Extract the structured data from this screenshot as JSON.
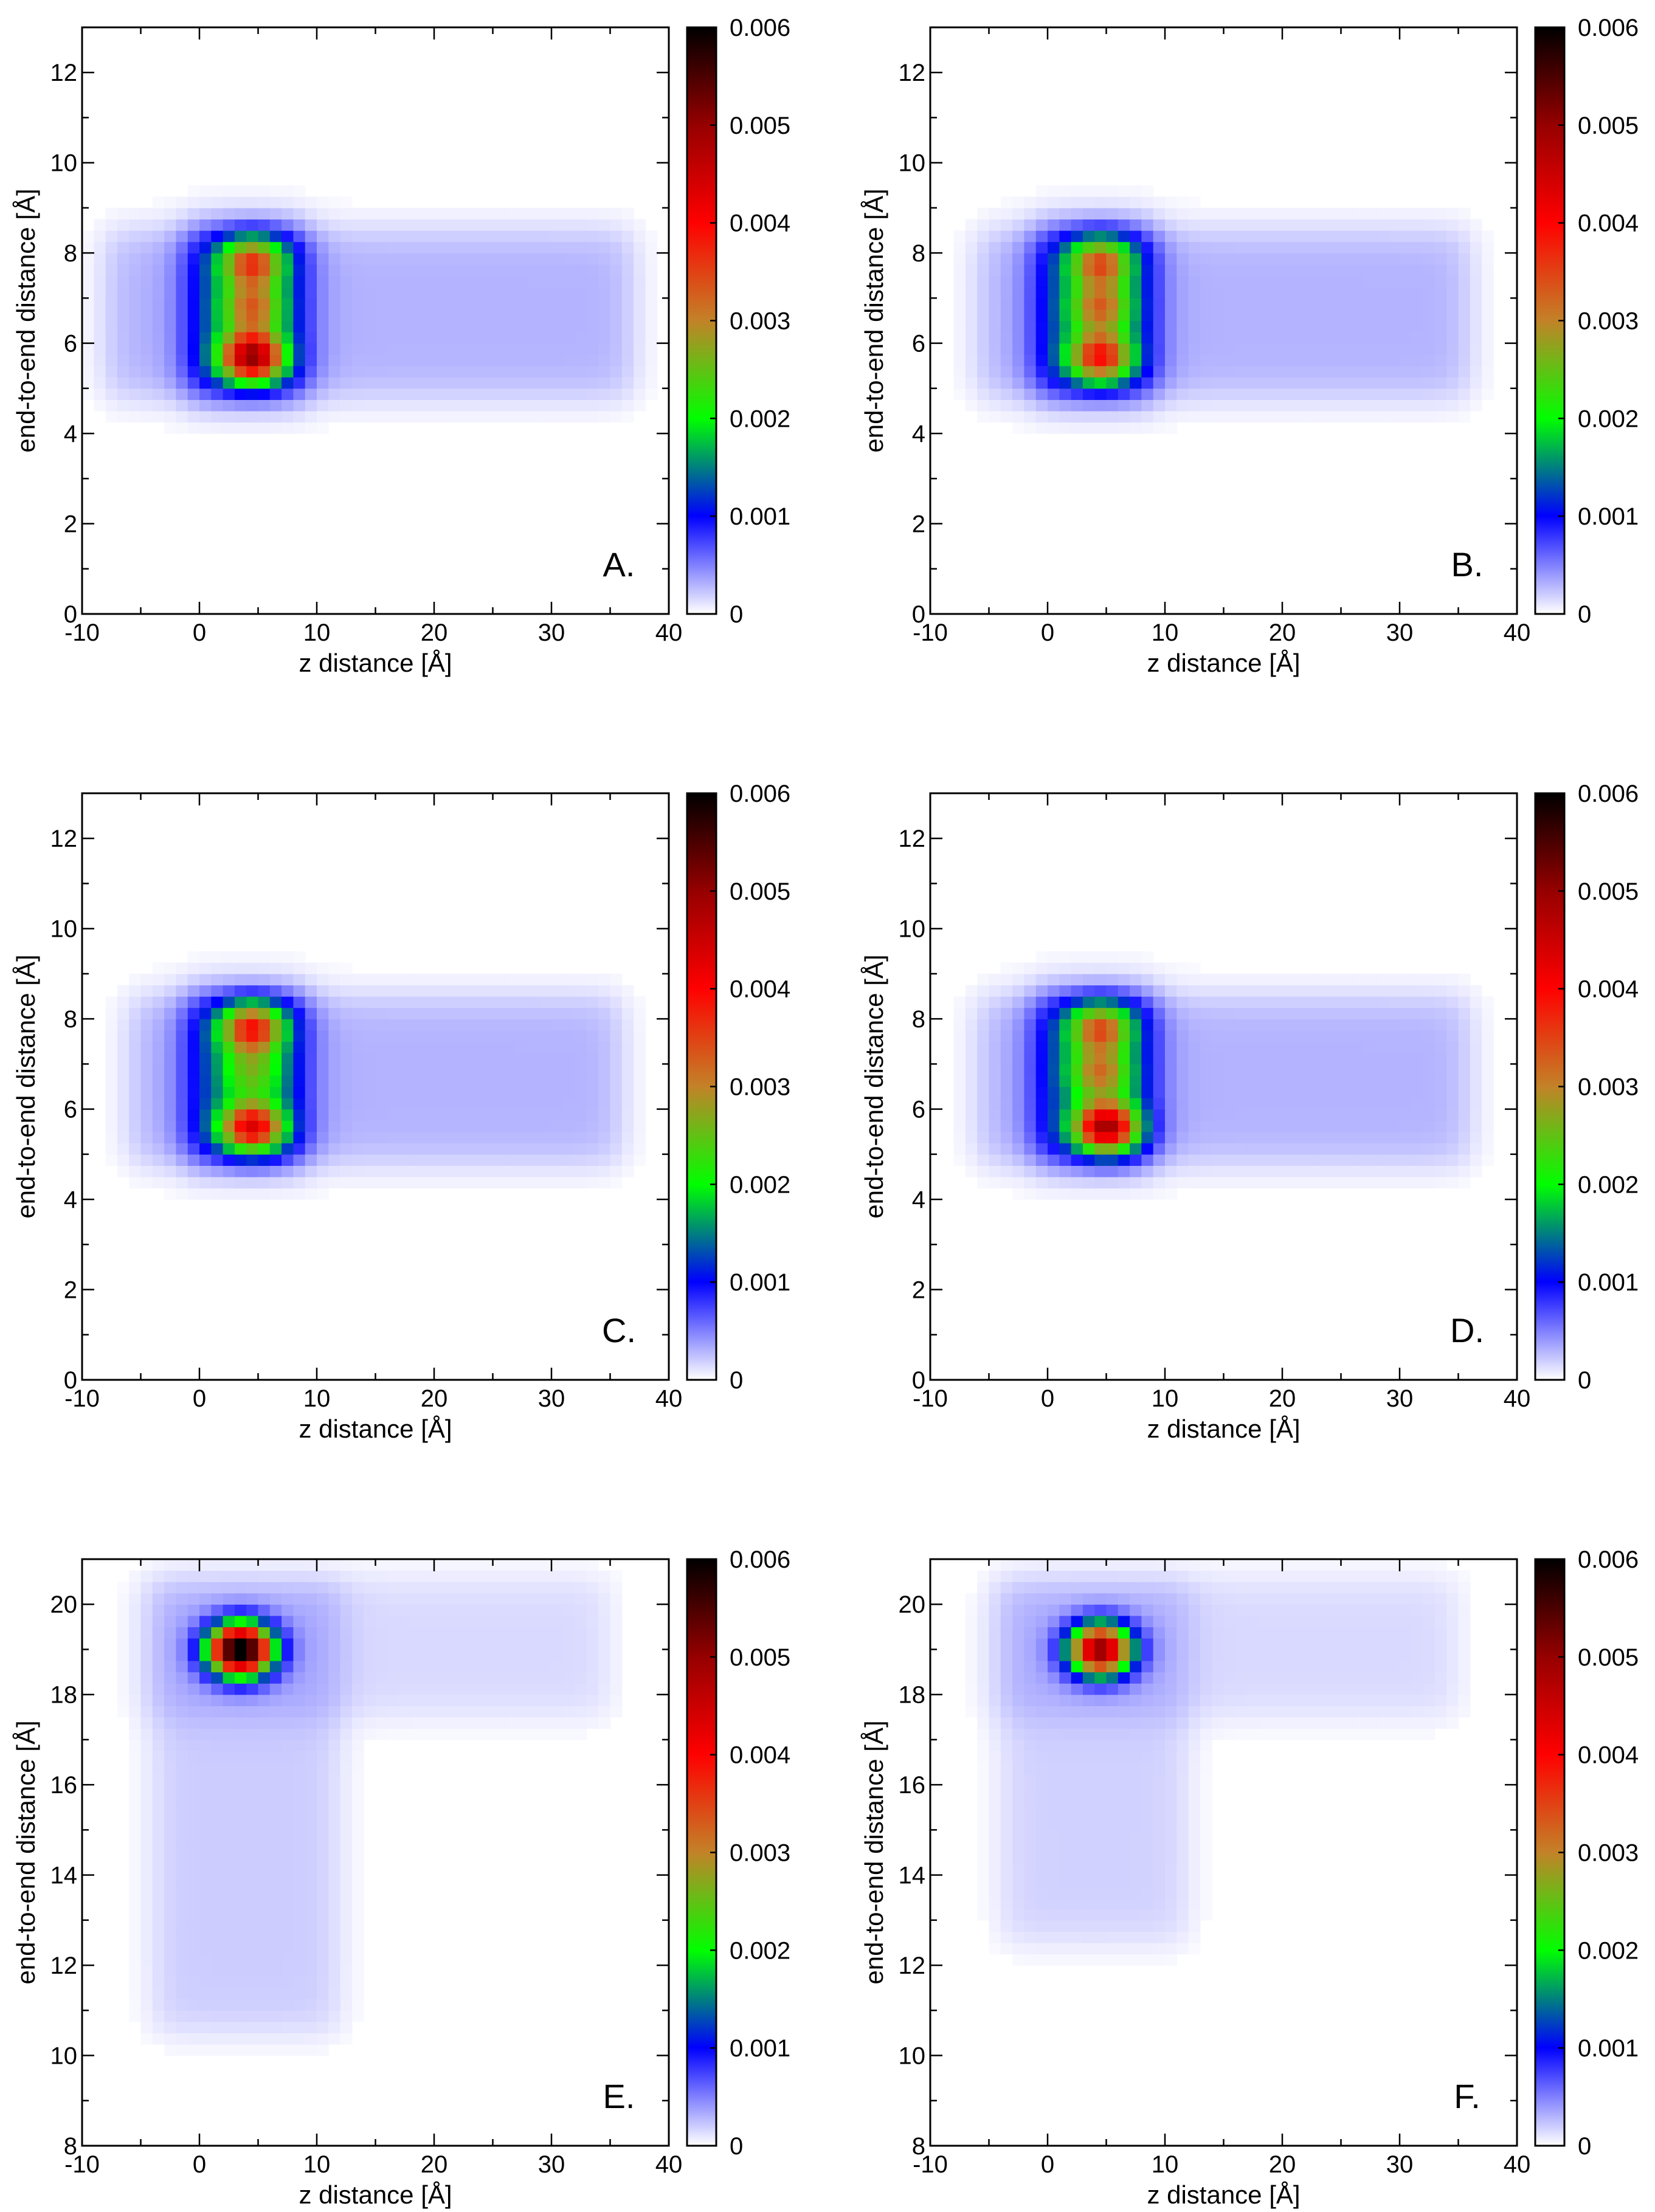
{
  "chart_data": [
    {
      "type": "heatmap",
      "panel_label": "A.",
      "xlabel": "z distance [Å]",
      "ylabel": "end-to-end distance [Å]",
      "xlim": [
        -10,
        40
      ],
      "ylim": [
        0,
        13
      ],
      "xticks": [
        -10,
        0,
        10,
        20,
        30,
        40
      ],
      "yticks": [
        0,
        2,
        4,
        6,
        8,
        10,
        12
      ],
      "colorbar": {
        "min": 0,
        "max": 0.006,
        "ticks": [
          0,
          0.001,
          0.002,
          0.003,
          0.004,
          0.005,
          0.006
        ]
      },
      "regions": [
        {
          "z": [
            -8,
            37
          ],
          "d": [
            4.8,
            8.5
          ],
          "value": 0.0003
        },
        {
          "z": [
            -1,
            9
          ],
          "d": [
            4.9,
            8.5
          ],
          "value": 0.001
        }
      ],
      "peaks": [
        {
          "z": 4.5,
          "d": 5.7,
          "value": 0.0038
        },
        {
          "z": 4.5,
          "d": 7.8,
          "value": 0.0024
        },
        {
          "z": 4.5,
          "d": 6.8,
          "value": 0.0019
        }
      ]
    },
    {
      "type": "heatmap",
      "panel_label": "B.",
      "xlabel": "z distance [Å]",
      "ylabel": "end-to-end distance [Å]",
      "xlim": [
        -10,
        40
      ],
      "ylim": [
        0,
        13
      ],
      "xticks": [
        -10,
        0,
        10,
        20,
        30,
        40
      ],
      "yticks": [
        0,
        2,
        4,
        6,
        8,
        10,
        12
      ],
      "colorbar": {
        "min": 0,
        "max": 0.006,
        "ticks": [
          0,
          0.001,
          0.002,
          0.003,
          0.004,
          0.005,
          0.006
        ]
      },
      "regions": [
        {
          "z": [
            -6,
            36
          ],
          "d": [
            4.8,
            8.5
          ],
          "value": 0.0003
        },
        {
          "z": [
            -1,
            9
          ],
          "d": [
            4.9,
            8.5
          ],
          "value": 0.001
        }
      ],
      "peaks": [
        {
          "z": 4.5,
          "d": 5.7,
          "value": 0.0027
        },
        {
          "z": 4.5,
          "d": 7.8,
          "value": 0.0022
        },
        {
          "z": 4.5,
          "d": 6.8,
          "value": 0.0019
        }
      ]
    },
    {
      "type": "heatmap",
      "panel_label": "C.",
      "xlabel": "z distance [Å]",
      "ylabel": "end-to-end distance [Å]",
      "xlim": [
        -10,
        40
      ],
      "ylim": [
        0,
        13
      ],
      "xticks": [
        -10,
        0,
        10,
        20,
        30,
        40
      ],
      "yticks": [
        0,
        2,
        4,
        6,
        8,
        10,
        12
      ],
      "colorbar": {
        "min": 0,
        "max": 0.006,
        "ticks": [
          0,
          0.001,
          0.002,
          0.003,
          0.004,
          0.005,
          0.006
        ]
      },
      "regions": [
        {
          "z": [
            -6,
            36
          ],
          "d": [
            4.8,
            8.5
          ],
          "value": 0.0003
        },
        {
          "z": [
            -1,
            9
          ],
          "d": [
            4.9,
            8.5
          ],
          "value": 0.001
        }
      ],
      "peaks": [
        {
          "z": 4.5,
          "d": 5.6,
          "value": 0.0031
        },
        {
          "z": 4.5,
          "d": 7.8,
          "value": 0.0027
        },
        {
          "z": 4.5,
          "d": 6.8,
          "value": 0.0012
        }
      ]
    },
    {
      "type": "heatmap",
      "panel_label": "D.",
      "xlabel": "z distance [Å]",
      "ylabel": "end-to-end distance [Å]",
      "xlim": [
        -10,
        40
      ],
      "ylim": [
        0,
        13
      ],
      "xticks": [
        -10,
        0,
        10,
        20,
        30,
        40
      ],
      "yticks": [
        0,
        2,
        4,
        6,
        8,
        10,
        12
      ],
      "colorbar": {
        "min": 0,
        "max": 0.006,
        "ticks": [
          0,
          0.001,
          0.002,
          0.003,
          0.004,
          0.005,
          0.006
        ]
      },
      "regions": [
        {
          "z": [
            -6,
            36
          ],
          "d": [
            4.8,
            8.5
          ],
          "value": 0.0003
        },
        {
          "z": [
            -1,
            9
          ],
          "d": [
            4.9,
            8.5
          ],
          "value": 0.001
        }
      ],
      "peaks": [
        {
          "z": 5,
          "d": 5.6,
          "value": 0.0037
        },
        {
          "z": 4.5,
          "d": 7.8,
          "value": 0.0022
        },
        {
          "z": 4.5,
          "d": 6.8,
          "value": 0.0018
        }
      ]
    },
    {
      "type": "heatmap",
      "panel_label": "E.",
      "xlabel": "z distance [Å]",
      "ylabel": "end-to-end distance [Å]",
      "xlim": [
        -10,
        40
      ],
      "ylim": [
        8,
        21
      ],
      "xticks": [
        -10,
        0,
        10,
        20,
        30,
        40
      ],
      "yticks": [
        8,
        10,
        12,
        14,
        16,
        18,
        20
      ],
      "colorbar": {
        "min": 0,
        "max": 0.006,
        "ticks": [
          0,
          0.001,
          0.002,
          0.003,
          0.004,
          0.005,
          0.006
        ]
      },
      "regions": [
        {
          "z": [
            -4,
            12
          ],
          "d": [
            10.5,
            20.5
          ],
          "value": 0.0002
        },
        {
          "z": [
            -5,
            35
          ],
          "d": [
            17.5,
            20.6
          ],
          "value": 0.00015
        }
      ],
      "peaks": [
        {
          "z": 3.5,
          "d": 19.0,
          "value": 0.0062
        }
      ]
    },
    {
      "type": "heatmap",
      "panel_label": "F.",
      "xlabel": "z distance [Å]",
      "ylabel": "end-to-end distance [Å]",
      "xlim": [
        -10,
        40
      ],
      "ylim": [
        8,
        21
      ],
      "xticks": [
        -10,
        0,
        10,
        20,
        30,
        40
      ],
      "yticks": [
        8,
        10,
        12,
        14,
        16,
        18,
        20
      ],
      "colorbar": {
        "min": 0,
        "max": 0.006,
        "ticks": [
          0,
          0.001,
          0.002,
          0.003,
          0.004,
          0.005,
          0.006
        ]
      },
      "regions": [
        {
          "z": [
            -4,
            12
          ],
          "d": [
            12.5,
            20.5
          ],
          "value": 0.00018
        },
        {
          "z": [
            -5,
            35
          ],
          "d": [
            17.5,
            20.6
          ],
          "value": 0.00015
        }
      ],
      "peaks": [
        {
          "z": 4.5,
          "d": 19.0,
          "value": 0.0048
        }
      ]
    }
  ]
}
